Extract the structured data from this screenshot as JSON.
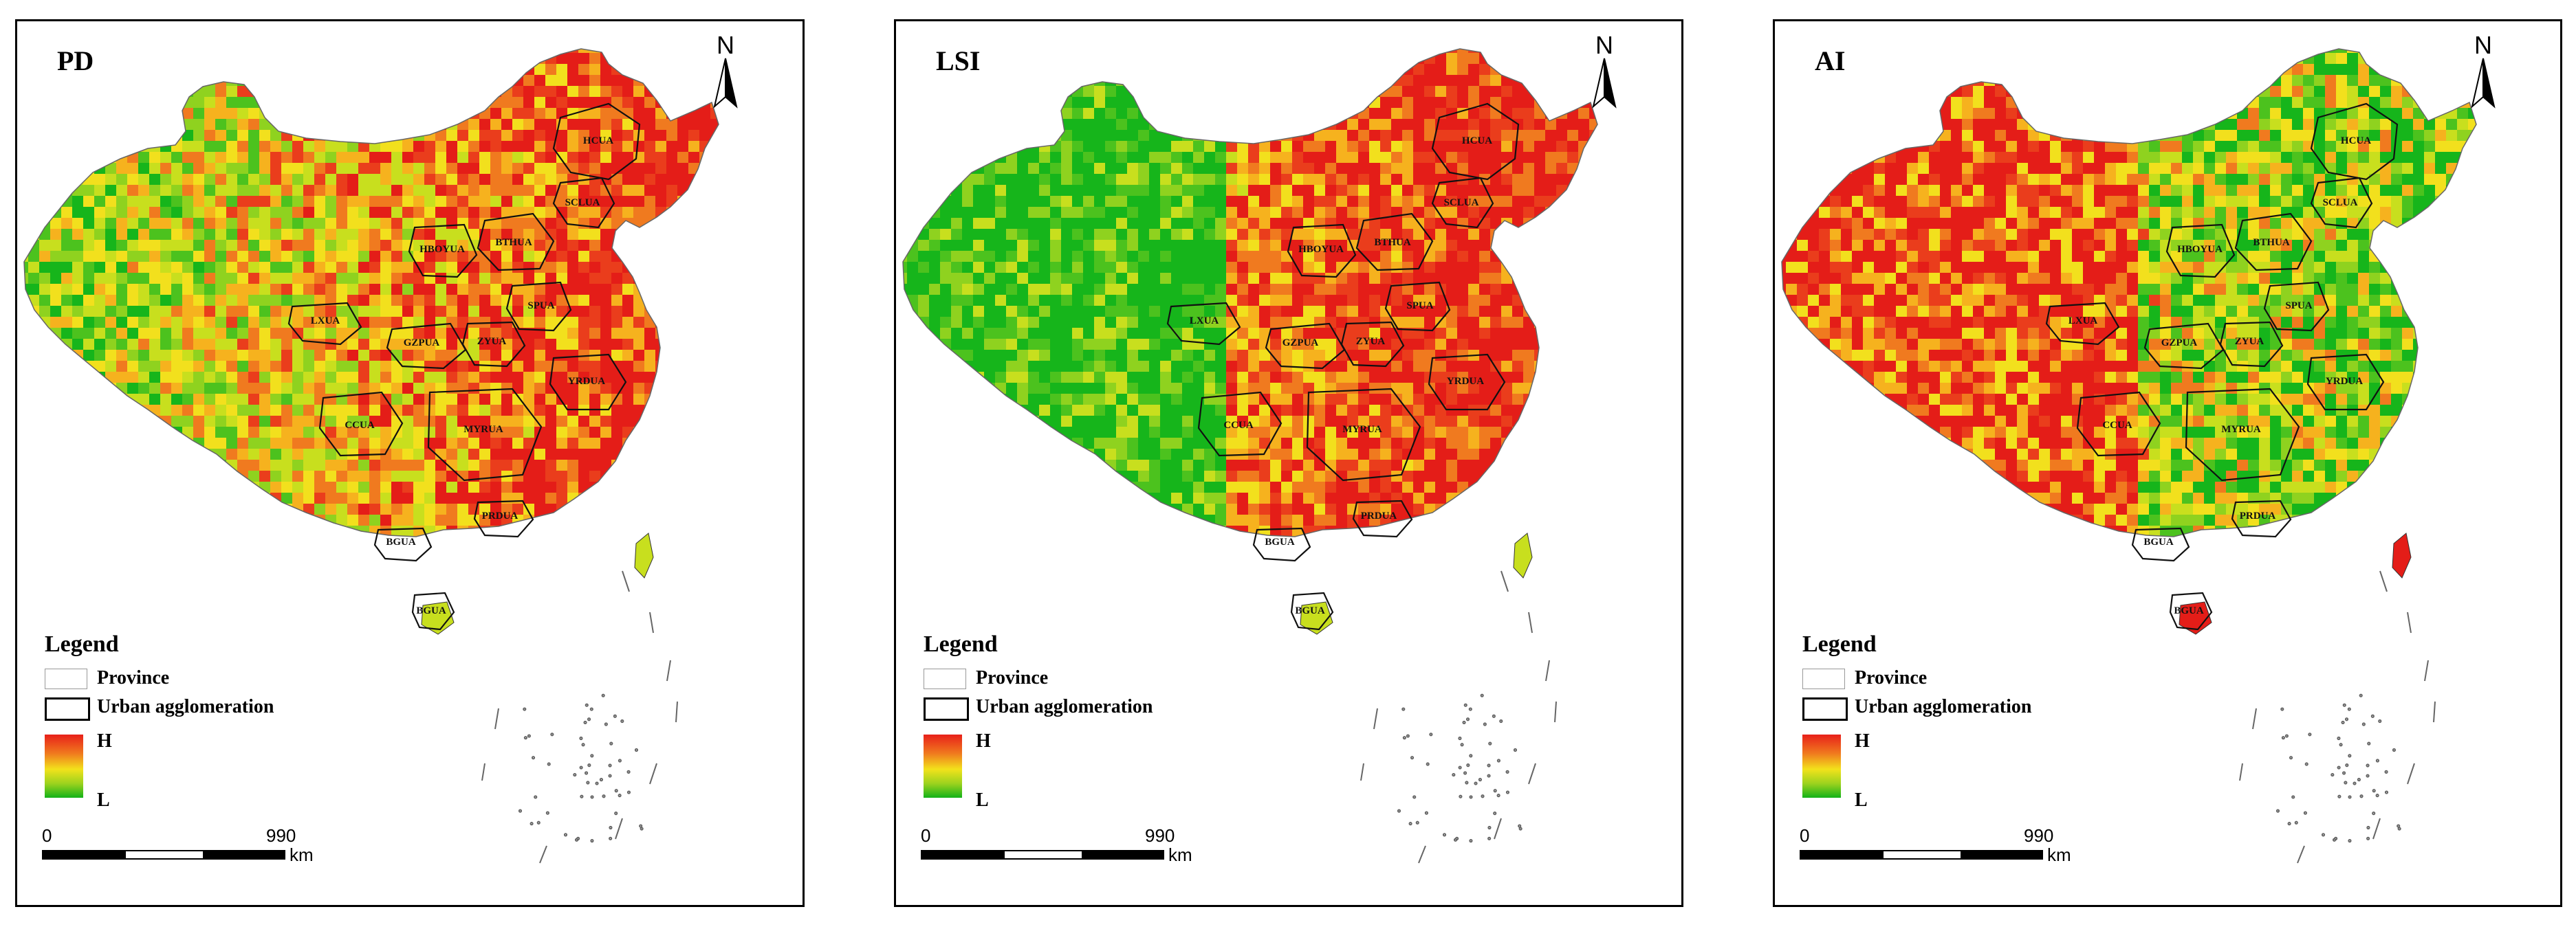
{
  "panels": [
    {
      "title": "PD",
      "palette": [
        "#16b51b",
        "#4cc21e",
        "#8fd21f",
        "#c8df1e",
        "#f2e01d",
        "#f6b21e",
        "#f07a1f",
        "#ea3d1c",
        "#e41d18"
      ],
      "bias": 0.62
    },
    {
      "title": "LSI",
      "palette": [
        "#16b51b",
        "#4cc21e",
        "#8fd21f",
        "#c8df1e",
        "#f2e01d",
        "#f6b21e",
        "#f07a1f",
        "#ea3d1c",
        "#e41d18"
      ],
      "bias": 0.42
    },
    {
      "title": "AI",
      "palette": [
        "#16b51b",
        "#4cc21e",
        "#8fd21f",
        "#c8df1e",
        "#f2e01d",
        "#f6b21e",
        "#f07a1f",
        "#ea3d1c",
        "#e41d18"
      ],
      "bias": 0.5
    }
  ],
  "north_label": "N",
  "legend": {
    "title": "Legend",
    "province": "Province",
    "urban": "Urban agglomeration",
    "high": "H",
    "low": "L"
  },
  "scale": {
    "start": "0",
    "end": "990",
    "unit": "km"
  },
  "urban_agglomerations": [
    "HCUA",
    "SCLUA",
    "BTHUA",
    "HBOYUA",
    "SPUA",
    "LXUA",
    "GZPUA",
    "ZYUA",
    "YRDUA",
    "CCUA",
    "MYRUA",
    "PRDUA",
    "BGUA",
    "BGUA"
  ]
}
